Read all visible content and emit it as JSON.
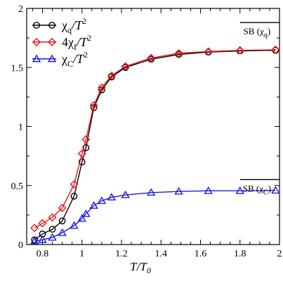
{
  "chart_data": {
    "type": "line",
    "xlabel_main": "T/T",
    "xlabel_sub": "0",
    "ylabel": "",
    "xlim": [
      0.72,
      2.0
    ],
    "ylim": [
      0,
      2.0
    ],
    "x_ticks": [
      0.8,
      1,
      1.2,
      1.4,
      1.6,
      1.8,
      2
    ],
    "x_tick_labels": [
      "0.8",
      "1",
      "1.2",
      "1.4",
      "1.6",
      "1.8",
      "2"
    ],
    "y_ticks": [
      0,
      0.5,
      1,
      1.5,
      2
    ],
    "y_tick_labels": [
      "0",
      "0.5",
      "1",
      "1.5",
      "2"
    ],
    "grid": false,
    "legend_position": "top-left",
    "series": [
      {
        "name_parts": [
          "χ",
          "q",
          "/T",
          "2"
        ],
        "color": "#000000",
        "marker": "circle",
        "x": [
          0.76,
          0.8,
          0.85,
          0.9,
          0.96,
          1.0,
          1.02,
          1.06,
          1.1,
          1.15,
          1.22,
          1.35,
          1.49,
          1.64,
          1.8,
          1.98
        ],
        "y": [
          0.04,
          0.09,
          0.13,
          0.2,
          0.41,
          0.7,
          0.82,
          1.16,
          1.31,
          1.42,
          1.5,
          1.57,
          1.61,
          1.63,
          1.64,
          1.645
        ]
      },
      {
        "name_parts": [
          "4χ",
          "I",
          "/T",
          "2"
        ],
        "color": "#e8161c",
        "marker": "diamond",
        "x": [
          0.76,
          0.8,
          0.85,
          0.9,
          0.96,
          1.0,
          1.02,
          1.06,
          1.1,
          1.15,
          1.22,
          1.35,
          1.49,
          1.64,
          1.8,
          1.98
        ],
        "y": [
          0.14,
          0.18,
          0.23,
          0.31,
          0.51,
          0.77,
          0.89,
          1.18,
          1.33,
          1.43,
          1.51,
          1.58,
          1.62,
          1.635,
          1.645,
          1.65
        ]
      },
      {
        "name_parts": [
          "χ",
          "C",
          "/T",
          "2"
        ],
        "color": "#1a1ae6",
        "marker": "triangle",
        "x": [
          0.76,
          0.8,
          0.85,
          0.9,
          0.96,
          1.0,
          1.02,
          1.06,
          1.1,
          1.15,
          1.22,
          1.35,
          1.49,
          1.64,
          1.8,
          1.98
        ],
        "y": [
          0.03,
          0.04,
          0.06,
          0.1,
          0.16,
          0.22,
          0.26,
          0.33,
          0.37,
          0.4,
          0.42,
          0.44,
          0.45,
          0.455,
          0.455,
          0.458
        ]
      }
    ],
    "annotations": [
      {
        "text_main": "SB (χ",
        "text_sub": "q",
        "text_end": ")",
        "line_y": 1.88,
        "x_from": 1.8,
        "x_to": 2.0
      },
      {
        "text_main": "SB (χ",
        "text_sub": "C",
        "text_end": ")",
        "line_y": 0.55,
        "x_from": 1.8,
        "x_to": 2.0
      }
    ]
  }
}
